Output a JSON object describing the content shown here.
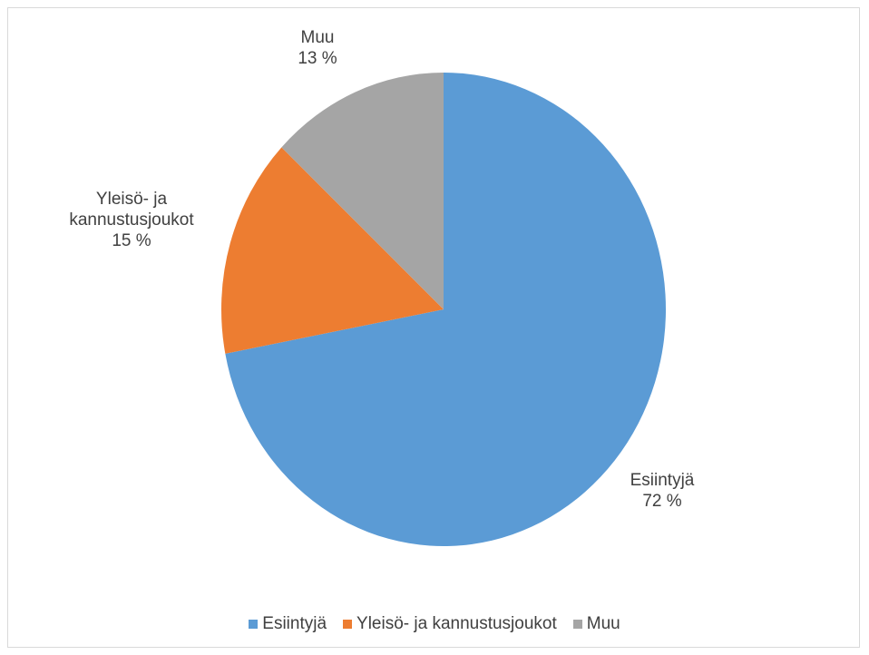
{
  "chart_data": {
    "type": "pie",
    "categories": [
      "Esiintyjä",
      "Yleisö- ja kannustusjoukot",
      "Muu"
    ],
    "values": [
      72,
      15,
      13
    ],
    "value_labels": [
      "72 %",
      "15 %",
      "13 %"
    ],
    "colors": [
      "#5b9bd5",
      "#ed7d31",
      "#a5a5a5"
    ],
    "legend": "bottom"
  }
}
